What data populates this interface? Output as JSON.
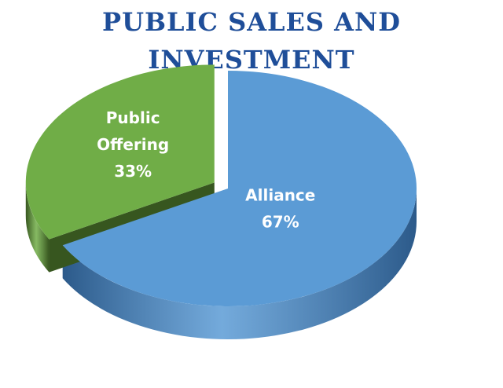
{
  "chart_data": {
    "type": "pie",
    "title": "PUBLIC SALES AND INVESTMENT",
    "slices": [
      {
        "name": "Alliance",
        "label_lines": [
          "Alliance"
        ],
        "value": 67,
        "value_label": "67%",
        "color": "#5b9bd5",
        "side_color": "#2c5a8a",
        "exploded": false
      },
      {
        "name": "Public Offering",
        "label_lines": [
          "Public",
          "Offering"
        ],
        "value": 33,
        "value_label": "33%",
        "color": "#70ad47",
        "side_color": "#37561f",
        "exploded": true
      }
    ],
    "legend": "none",
    "style": "3d-exploded"
  }
}
